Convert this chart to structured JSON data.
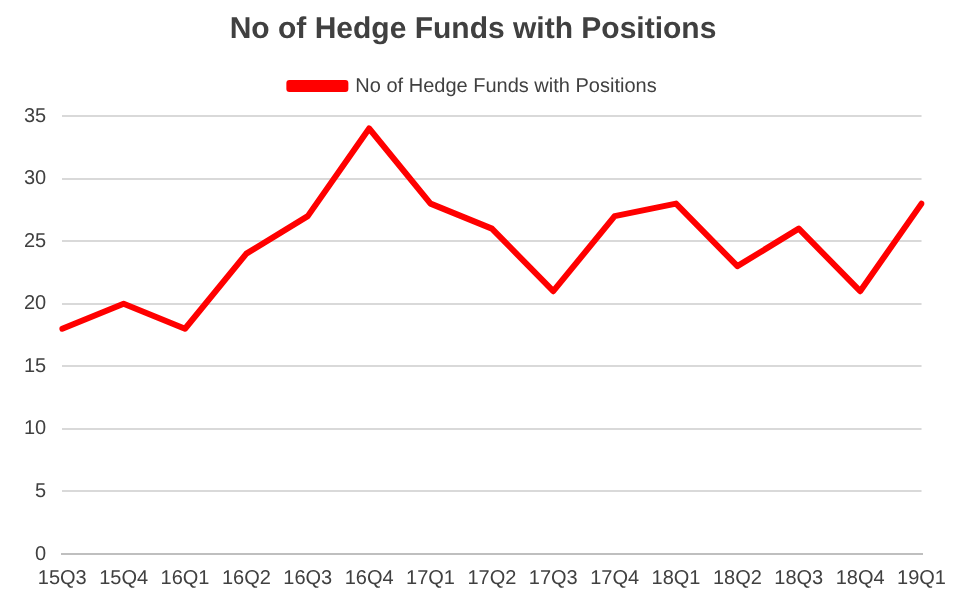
{
  "chart_data": {
    "type": "line",
    "title": "No of Hedge Funds with Positions",
    "categories": [
      "15Q3",
      "15Q4",
      "16Q1",
      "16Q2",
      "16Q3",
      "16Q4",
      "17Q1",
      "17Q2",
      "17Q3",
      "17Q4",
      "18Q1",
      "18Q2",
      "18Q3",
      "18Q4",
      "19Q1"
    ],
    "series": [
      {
        "name": "No of Hedge Funds with Positions",
        "color": "#ff0000",
        "values": [
          18,
          20,
          18,
          24,
          27,
          34,
          28,
          26,
          21,
          27,
          28,
          23,
          26,
          21,
          28
        ]
      }
    ],
    "ylim": [
      0,
      35
    ],
    "yticks": [
      0,
      5,
      10,
      15,
      20,
      25,
      30,
      35
    ],
    "grid": "y",
    "legend": "top",
    "marker": "none",
    "line_style": "solid"
  }
}
